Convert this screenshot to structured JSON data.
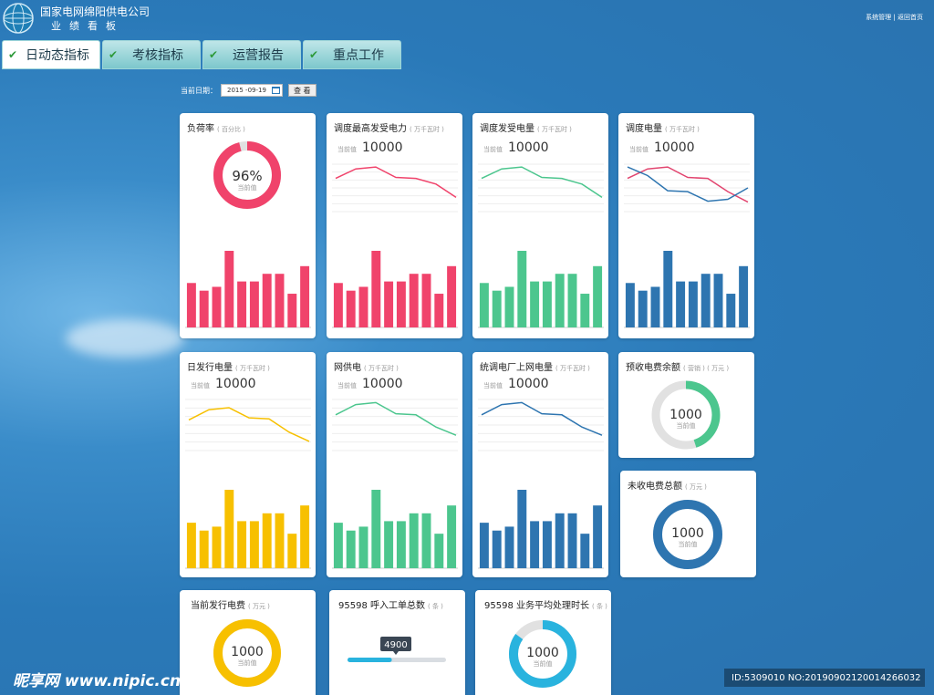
{
  "header": {
    "company": "国家电网绵阳供电公司",
    "subtitle": "业绩看板",
    "links": [
      "系统管理",
      "返回首页"
    ],
    "link_sep": "|"
  },
  "tabs": [
    {
      "label": "日动态指标",
      "active": true
    },
    {
      "label": "考核指标",
      "active": false
    },
    {
      "label": "运营报告",
      "active": false
    },
    {
      "label": "重点工作",
      "active": false
    }
  ],
  "date_bar": {
    "label": "当前日期：",
    "value": "2015 -09-19",
    "button": "查 看"
  },
  "current_label": "当前值",
  "cards": {
    "load_rate": {
      "title": "负荷率",
      "unit": "( 百分比 )",
      "value": "96%",
      "gauge": 0.96,
      "color": "#f0436b"
    },
    "peak_power": {
      "title": "调度最高发受电力",
      "unit": "( 万千瓦时 )",
      "value": "10000",
      "color": "#f0436b"
    },
    "gen_energy": {
      "title": "调度发受电量",
      "unit": "( 万千瓦时 )",
      "value": "10000",
      "color": "#4cc68e"
    },
    "dispatch_energy": {
      "title": "调度电量",
      "unit": "( 万千瓦时 )",
      "value": "10000",
      "color": "#2e75b0"
    },
    "daily_energy": {
      "title": "日发行电量",
      "unit": "( 万千瓦时 )",
      "value": "10000",
      "color": "#f7c000"
    },
    "grid_supply": {
      "title": "网供电",
      "unit": "( 万千瓦时 )",
      "value": "10000",
      "color": "#4cc68e"
    },
    "plant_grid": {
      "title": "统调电厂上网电量",
      "unit": "( 万千瓦时 )",
      "value": "10000",
      "color": "#2e75b0"
    },
    "prepaid": {
      "title": "预收电费余额",
      "unit": "( 营销 ) ( 万元 )",
      "value": "1000",
      "gauge": 0.45,
      "color": "#4cc68e"
    },
    "unpaid": {
      "title": "未收电费总额",
      "unit": "( 万元 )",
      "value": "1000",
      "gauge": 1.0,
      "color": "#2e75b0"
    },
    "current_fee": {
      "title": "当前发行电费",
      "unit": "( 万元 )",
      "value": "1000",
      "gauge": 1.0,
      "color": "#f7c000"
    },
    "calls": {
      "title": "95598 呼入工单总数",
      "unit": "( 条 )",
      "value": "4900",
      "progress": 0.45,
      "color": "#29b3de"
    },
    "avg_time": {
      "title": "95598 业务平均处理时长",
      "unit": "( 条 )",
      "value": "1000",
      "gauge": 0.85,
      "color": "#29b3de"
    }
  },
  "chart_data": [
    {
      "type": "bar",
      "name": "load_rate_bars",
      "values": [
        5.8,
        4.8,
        5.3,
        10,
        6,
        6,
        7,
        7,
        4.4,
        8
      ],
      "color": "#f0436b"
    },
    {
      "type": "line",
      "name": "peak_power_line",
      "values": [
        7,
        9,
        9.4,
        7.2,
        7,
        5.8,
        3
      ],
      "color": "#f0436b"
    },
    {
      "type": "bar",
      "name": "peak_power_bars",
      "values": [
        5.8,
        4.8,
        5.3,
        10,
        6,
        6,
        7,
        7,
        4.4,
        8
      ],
      "color": "#f0436b"
    },
    {
      "type": "line",
      "name": "gen_energy_line",
      "values": [
        7,
        9,
        9.4,
        7.2,
        7,
        5.8,
        3
      ],
      "color": "#4cc68e"
    },
    {
      "type": "bar",
      "name": "gen_energy_bars",
      "values": [
        5.8,
        4.8,
        5.3,
        10,
        6,
        6,
        7,
        7,
        4.4,
        8
      ],
      "color": "#4cc68e"
    },
    {
      "type": "line",
      "name": "dispatch_energy_line_a",
      "values": [
        7,
        9,
        9.4,
        7.2,
        7,
        4.2,
        2
      ],
      "color": "#e2456f"
    },
    {
      "type": "line",
      "name": "dispatch_energy_line_b",
      "values": [
        9.4,
        7.6,
        4.4,
        4.2,
        2.2,
        2.6,
        5
      ],
      "color": "#2e75b0"
    },
    {
      "type": "bar",
      "name": "dispatch_energy_bars",
      "values": [
        5.8,
        4.8,
        5.3,
        10,
        6,
        6,
        7,
        7,
        4.4,
        8
      ],
      "color": "#2e75b0"
    },
    {
      "type": "line",
      "name": "daily_energy_line",
      "values": [
        6,
        8,
        8.4,
        6.4,
        6.2,
        3.6,
        1.8
      ],
      "color": "#f7c000"
    },
    {
      "type": "bar",
      "name": "daily_energy_bars",
      "values": [
        5.8,
        4.8,
        5.3,
        10,
        6,
        6,
        7,
        7,
        4.4,
        8
      ],
      "color": "#f7c000"
    },
    {
      "type": "line",
      "name": "grid_supply_line",
      "values": [
        7,
        9,
        9.4,
        7.2,
        7,
        4.6,
        3
      ],
      "color": "#4cc68e"
    },
    {
      "type": "bar",
      "name": "grid_supply_bars",
      "values": [
        5.8,
        4.8,
        5.3,
        10,
        6,
        6,
        7,
        7,
        4.4,
        8
      ],
      "color": "#4cc68e"
    },
    {
      "type": "line",
      "name": "plant_grid_line",
      "values": [
        7,
        9,
        9.4,
        7.2,
        7,
        4.6,
        3
      ],
      "color": "#2e75b0"
    },
    {
      "type": "bar",
      "name": "plant_grid_bars",
      "values": [
        5.8,
        4.8,
        5.3,
        10,
        6,
        6,
        7,
        7,
        4.4,
        8
      ],
      "color": "#2e75b0"
    }
  ]
}
